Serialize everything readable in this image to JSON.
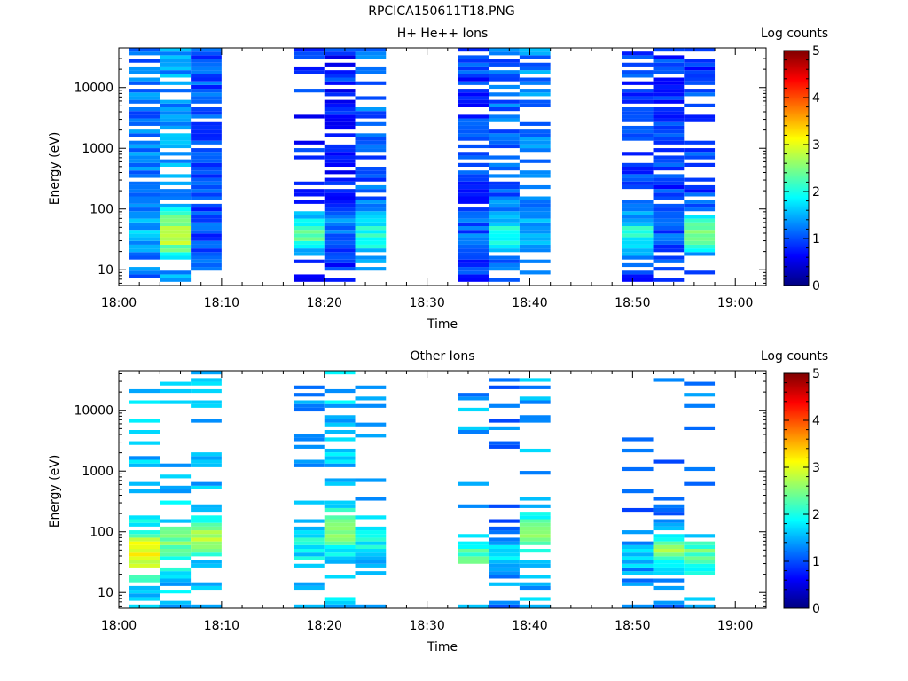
{
  "image_title": "RPCICA150611T18.PNG",
  "colorbar": {
    "label": "Log counts",
    "ticks": [
      "0",
      "1",
      "2",
      "3",
      "4",
      "5"
    ],
    "range": [
      0,
      5
    ],
    "colormap": "jet"
  },
  "chart_data": [
    {
      "type": "heatmap",
      "title": "H+ He++ Ions",
      "xlabel": "Time",
      "ylabel": "Energy (eV)",
      "y_scale": "log",
      "xlim": [
        "18:00",
        "19:03"
      ],
      "ylim": [
        5.5,
        45000
      ],
      "x_ticks": [
        "18:00",
        "18:10",
        "18:20",
        "18:30",
        "18:40",
        "18:50",
        "19:00"
      ],
      "y_ticks": [
        "10",
        "100",
        "1000",
        "10000"
      ],
      "grid": false,
      "columns": [
        {
          "start": "18:01",
          "end": "18:04",
          "density": 0.85,
          "low_level": 1.2,
          "peak_energy": 40,
          "peak_level": 1.5
        },
        {
          "start": "18:04",
          "end": "18:07",
          "density": 0.6,
          "low_level": 1.4,
          "peak_energy": 40,
          "peak_level": 2.9
        },
        {
          "start": "18:07",
          "end": "18:10",
          "density": 0.9,
          "low_level": 1.0,
          "peak_energy": 30,
          "peak_level": 1.0
        },
        {
          "start": "18:17",
          "end": "18:20",
          "density": 0.45,
          "low_level": 0.8,
          "peak_energy": 40,
          "peak_level": 2.3
        },
        {
          "start": "18:20",
          "end": "18:23",
          "density": 0.75,
          "low_level": 0.8,
          "peak_energy": 50,
          "peak_level": 1.3
        },
        {
          "start": "18:23",
          "end": "18:26",
          "density": 0.55,
          "low_level": 1.1,
          "peak_energy": 40,
          "peak_level": 2.1
        },
        {
          "start": "18:33",
          "end": "18:36",
          "density": 0.8,
          "low_level": 0.9,
          "peak_energy": 40,
          "peak_level": 1.1
        },
        {
          "start": "18:36",
          "end": "18:39",
          "density": 0.6,
          "low_level": 1.1,
          "peak_energy": 40,
          "peak_level": 2.0
        },
        {
          "start": "18:39",
          "end": "18:42",
          "density": 0.75,
          "low_level": 1.3,
          "peak_energy": 40,
          "peak_level": 1.4
        },
        {
          "start": "18:49",
          "end": "18:52",
          "density": 0.7,
          "low_level": 0.9,
          "peak_energy": 40,
          "peak_level": 2.0
        },
        {
          "start": "18:52",
          "end": "18:55",
          "density": 0.75,
          "low_level": 0.9,
          "peak_energy": 40,
          "peak_level": 1.0
        },
        {
          "start": "18:55",
          "end": "18:58",
          "density": 0.6,
          "low_level": 0.9,
          "peak_energy": 40,
          "peak_level": 2.4
        }
      ]
    },
    {
      "type": "heatmap",
      "title": "Other Ions",
      "xlabel": "Time",
      "ylabel": "Energy (eV)",
      "y_scale": "log",
      "xlim": [
        "18:00",
        "19:03"
      ],
      "ylim": [
        5.5,
        45000
      ],
      "x_ticks": [
        "18:00",
        "18:10",
        "18:20",
        "18:30",
        "18:40",
        "18:50",
        "19:00"
      ],
      "y_ticks": [
        "10",
        "100",
        "1000",
        "10000"
      ],
      "grid": false,
      "columns": [
        {
          "start": "18:01",
          "end": "18:04",
          "density": 0.3,
          "low_level": 1.6,
          "peak_energy": 45,
          "peak_level": 3.1
        },
        {
          "start": "18:04",
          "end": "18:07",
          "density": 0.25,
          "low_level": 1.6,
          "peak_energy": 60,
          "peak_level": 2.5
        },
        {
          "start": "18:07",
          "end": "18:10",
          "density": 0.3,
          "low_level": 1.5,
          "peak_energy": 80,
          "peak_level": 2.6
        },
        {
          "start": "18:17",
          "end": "18:20",
          "density": 0.2,
          "low_level": 1.4,
          "peak_energy": 60,
          "peak_level": 1.9
        },
        {
          "start": "18:20",
          "end": "18:23",
          "density": 0.3,
          "low_level": 1.6,
          "peak_energy": 100,
          "peak_level": 2.4
        },
        {
          "start": "18:23",
          "end": "18:26",
          "density": 0.2,
          "low_level": 1.4,
          "peak_energy": 60,
          "peak_level": 1.9
        },
        {
          "start": "18:33",
          "end": "18:36",
          "density": 0.15,
          "low_level": 1.4,
          "peak_energy": 40,
          "peak_level": 2.3
        },
        {
          "start": "18:36",
          "end": "18:39",
          "density": 0.2,
          "low_level": 1.2,
          "peak_energy": 40,
          "peak_level": 1.7
        },
        {
          "start": "18:39",
          "end": "18:42",
          "density": 0.25,
          "low_level": 1.5,
          "peak_energy": 100,
          "peak_level": 2.4
        },
        {
          "start": "18:49",
          "end": "18:52",
          "density": 0.15,
          "low_level": 1.1,
          "peak_energy": 40,
          "peak_level": 1.6
        },
        {
          "start": "18:52",
          "end": "18:55",
          "density": 0.2,
          "low_level": 1.2,
          "peak_energy": 50,
          "peak_level": 2.5
        },
        {
          "start": "18:55",
          "end": "18:58",
          "density": 0.2,
          "low_level": 1.4,
          "peak_energy": 40,
          "peak_level": 2.4
        }
      ]
    }
  ]
}
